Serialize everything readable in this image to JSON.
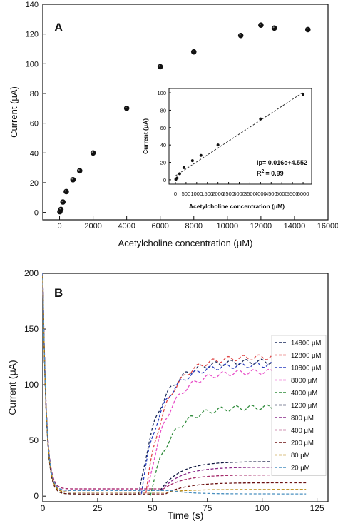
{
  "chart_data": [
    {
      "panel_label": "A",
      "type": "scatter",
      "xlabel": "Acetylcholine concentration (μM)",
      "ylabel": "Current (μA)",
      "xlim": [
        -1000,
        16000
      ],
      "ylim": [
        -5,
        140
      ],
      "xticks": [
        0,
        2000,
        4000,
        6000,
        8000,
        10000,
        12000,
        14000,
        16000
      ],
      "yticks": [
        0,
        20,
        40,
        60,
        80,
        100,
        120,
        140
      ],
      "grid": false,
      "points": [
        {
          "x": 20,
          "y": 0.5
        },
        {
          "x": 80,
          "y": 2
        },
        {
          "x": 200,
          "y": 7
        },
        {
          "x": 400,
          "y": 14
        },
        {
          "x": 800,
          "y": 22
        },
        {
          "x": 1200,
          "y": 28
        },
        {
          "x": 2000,
          "y": 40
        },
        {
          "x": 4000,
          "y": 70
        },
        {
          "x": 6000,
          "y": 98
        },
        {
          "x": 8000,
          "y": 108
        },
        {
          "x": 10800,
          "y": 119
        },
        {
          "x": 12000,
          "y": 126
        },
        {
          "x": 12800,
          "y": 124
        },
        {
          "x": 14800,
          "y": 123
        }
      ],
      "inset": {
        "type": "scatter",
        "xlabel": "Acetylcholine concentration (μM)",
        "ylabel": "Current (μA)",
        "xlim": [
          -300,
          6400
        ],
        "ylim": [
          -5,
          105
        ],
        "xticks": [
          0,
          500,
          1000,
          1500,
          2000,
          2500,
          3000,
          3500,
          4000,
          4500,
          5000,
          5500,
          6000
        ],
        "yticks": [
          0,
          20,
          40,
          60,
          80,
          100
        ],
        "points": [
          {
            "x": 20,
            "y": 0.5
          },
          {
            "x": 80,
            "y": 2
          },
          {
            "x": 200,
            "y": 7
          },
          {
            "x": 400,
            "y": 14
          },
          {
            "x": 800,
            "y": 22
          },
          {
            "x": 1200,
            "y": 28
          },
          {
            "x": 2000,
            "y": 40
          },
          {
            "x": 4000,
            "y": 70
          },
          {
            "x": 6000,
            "y": 98
          }
        ],
        "fit_line": {
          "slope": 0.016,
          "intercept": 4.552
        },
        "equation": "ip= 0.016c+4.552",
        "r2_label": "R",
        "r2_sup": "2",
        "r2_value": "= 0.99"
      }
    },
    {
      "panel_label": "B",
      "type": "line",
      "xlabel": "Time (s)",
      "ylabel": "Current (μA)",
      "xlim": [
        0,
        130
      ],
      "ylim": [
        -5,
        200
      ],
      "xticks": [
        0,
        25,
        50,
        75,
        100,
        125
      ],
      "yticks": [
        0,
        50,
        100,
        150,
        200
      ],
      "legend_position": "right",
      "series": [
        {
          "name": "14800 μM",
          "color": "#1a2a5c",
          "plateau": 121,
          "rise": 44
        },
        {
          "name": "12800 μM",
          "color": "#e04646",
          "plateau": 125,
          "rise": 47
        },
        {
          "name": "10800 μM",
          "color": "#2a3fbf",
          "plateau": 118,
          "rise": 45
        },
        {
          "name": "8000 μM",
          "color": "#e84fc8",
          "plateau": 112,
          "rise": 48
        },
        {
          "name": "4000 μM",
          "color": "#2e8b3a",
          "plateau": 80,
          "rise": 49
        },
        {
          "name": "1200 μM",
          "color": "#101840",
          "plateau": 31,
          "rise": 53
        },
        {
          "name": "800 μM",
          "color": "#8a2a8a",
          "plateau": 26,
          "rise": 54
        },
        {
          "name": "400 μM",
          "color": "#a52a6a",
          "plateau": 19,
          "rise": 55
        },
        {
          "name": "200 μM",
          "color": "#6b1010",
          "plateau": 12,
          "rise": 56
        },
        {
          "name": "80 μM",
          "color": "#b8860b",
          "plateau": 6,
          "rise": 57
        },
        {
          "name": "20 μM",
          "color": "#4a90c0",
          "plateau": 2,
          "rise": 58
        }
      ]
    }
  ]
}
